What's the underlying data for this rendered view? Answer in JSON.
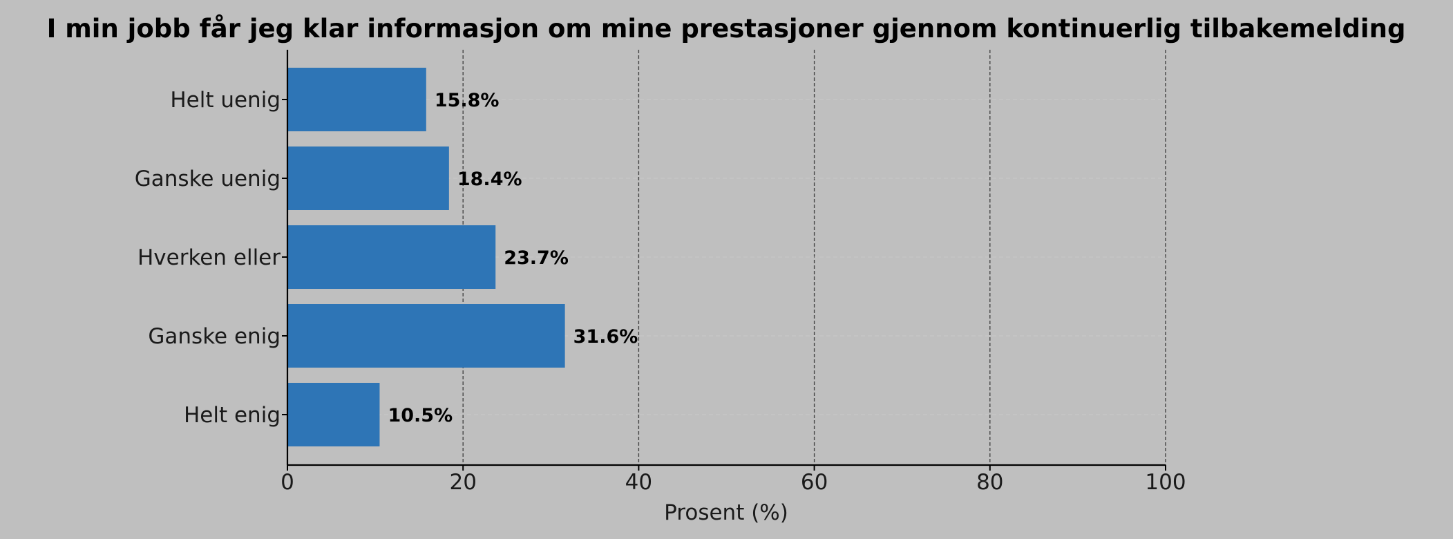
{
  "chart_data": {
    "type": "bar",
    "orientation": "horizontal",
    "title": "I min jobb får jeg klar informasjon om mine prestasjoner gjennom kontinuerlig tilbakemelding",
    "xlabel": "Prosent (%)",
    "ylabel": "",
    "categories": [
      "Helt uenig",
      "Ganske uenig",
      "Hverken eller",
      "Ganske enig",
      "Helt enig"
    ],
    "values": [
      15.8,
      18.4,
      23.7,
      31.6,
      10.5
    ],
    "data_labels": [
      "15.8%",
      "18.4%",
      "23.7%",
      "31.6%",
      "10.5%"
    ],
    "xlim": [
      0,
      100
    ],
    "xticks": [
      0,
      20,
      40,
      60,
      80,
      100
    ],
    "xtick_labels": [
      "0",
      "20",
      "40",
      "60",
      "80",
      "100"
    ],
    "grid": true,
    "bar_color": "#2e75b6",
    "background_color": "#bfbfbf"
  }
}
